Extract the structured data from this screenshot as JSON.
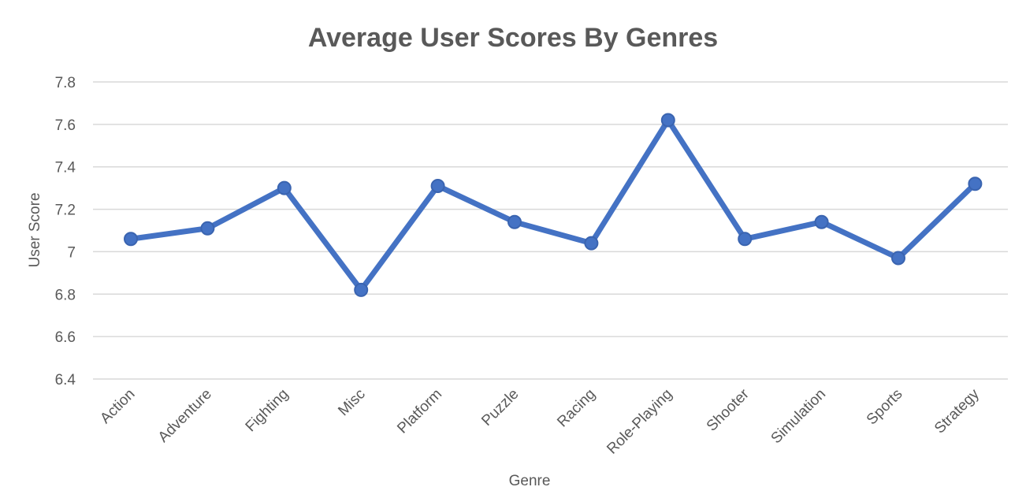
{
  "chart_data": {
    "type": "line",
    "title": "Average User Scores By Genres",
    "xlabel": "Genre",
    "ylabel": "User Score",
    "categories": [
      "Action",
      "Adventure",
      "Fighting",
      "Misc",
      "Platform",
      "Puzzle",
      "Racing",
      "Role-Playing",
      "Shooter",
      "Simulation",
      "Sports",
      "Strategy"
    ],
    "series": [
      {
        "values": [
          7.06,
          7.11,
          7.3,
          6.82,
          7.31,
          7.14,
          7.04,
          7.62,
          7.06,
          7.14,
          6.97,
          7.32
        ]
      }
    ],
    "ylim": [
      6.4,
      7.8
    ],
    "yticks": [
      6.4,
      6.6,
      6.8,
      7,
      7.2,
      7.4,
      7.6,
      7.8
    ],
    "ytick_labels": [
      "6.4",
      "6.6",
      "6.8",
      "7",
      "7.2",
      "7.4",
      "7.6",
      "7.8"
    ],
    "grid": true,
    "legend": false,
    "colors": {
      "line": "#4472c4",
      "marker_fill": "#4472c4",
      "marker_stroke": "#3a64b0",
      "grid": "#d9d9d9",
      "text": "#595959"
    }
  }
}
